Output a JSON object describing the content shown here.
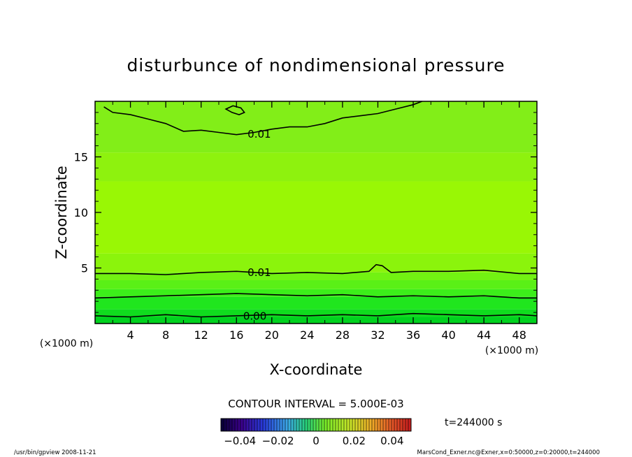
{
  "chart_data": {
    "type": "heatmap",
    "title": "disturbunce of nondimensional pressure",
    "xlabel": "X-coordinate",
    "ylabel": "Z-coordinate",
    "x_unit": "(×1000 m)",
    "y_unit": "(×1000 m)",
    "xlim": [
      0,
      50
    ],
    "ylim": [
      0,
      20
    ],
    "x_ticks": [
      4,
      8,
      12,
      16,
      20,
      24,
      28,
      32,
      36,
      40,
      44,
      48
    ],
    "y_ticks": [
      5,
      10,
      15
    ],
    "bands": [
      {
        "z_top": 0.6,
        "color": "#00d21e"
      },
      {
        "z_top": 1.3,
        "color": "#10dc1e"
      },
      {
        "z_top": 2.4,
        "color": "#20e61e"
      },
      {
        "z_top": 3.1,
        "color": "#3cee1a"
      },
      {
        "z_top": 3.9,
        "color": "#5af016"
      },
      {
        "z_top": 4.6,
        "color": "#72f212"
      },
      {
        "z_top": 6.3,
        "color": "#8bf40c"
      },
      {
        "z_top": 12.8,
        "color": "#99f705"
      },
      {
        "z_top": 15.4,
        "color": "#8ef20e"
      },
      {
        "z_top": 20.0,
        "color": "#82ee18"
      }
    ],
    "contours": [
      {
        "label": "0.00",
        "label_x": 16.5,
        "points": [
          [
            0,
            0.7
          ],
          [
            4,
            0.6
          ],
          [
            8,
            0.8
          ],
          [
            12,
            0.6
          ],
          [
            16,
            0.7
          ],
          [
            20,
            0.8
          ],
          [
            24,
            0.7
          ],
          [
            28,
            0.8
          ],
          [
            32,
            0.7
          ],
          [
            36,
            0.9
          ],
          [
            40,
            0.8
          ],
          [
            44,
            0.7
          ],
          [
            48,
            0.8
          ],
          [
            50,
            0.7
          ]
        ]
      },
      {
        "label": "",
        "label_x": null,
        "points": [
          [
            0,
            2.3
          ],
          [
            4,
            2.4
          ],
          [
            8,
            2.5
          ],
          [
            12,
            2.6
          ],
          [
            16,
            2.7
          ],
          [
            20,
            2.6
          ],
          [
            24,
            2.5
          ],
          [
            28,
            2.6
          ],
          [
            32,
            2.4
          ],
          [
            36,
            2.5
          ],
          [
            40,
            2.4
          ],
          [
            44,
            2.5
          ],
          [
            48,
            2.3
          ],
          [
            50,
            2.3
          ]
        ]
      },
      {
        "label": "0.01",
        "label_x": 17.0,
        "points": [
          [
            0,
            4.5
          ],
          [
            4,
            4.5
          ],
          [
            8,
            4.4
          ],
          [
            12,
            4.6
          ],
          [
            16,
            4.7
          ],
          [
            20,
            4.5
          ],
          [
            24,
            4.6
          ],
          [
            28,
            4.5
          ],
          [
            31,
            4.7
          ],
          [
            31.8,
            5.3
          ],
          [
            32.5,
            5.2
          ],
          [
            33.5,
            4.6
          ],
          [
            36,
            4.7
          ],
          [
            40,
            4.7
          ],
          [
            44,
            4.8
          ],
          [
            48,
            4.5
          ],
          [
            50,
            4.5
          ]
        ]
      },
      {
        "label": "0.01",
        "label_x": 17.0,
        "points": [
          [
            1,
            19.5
          ],
          [
            2,
            19.0
          ],
          [
            4,
            18.8
          ],
          [
            6,
            18.4
          ],
          [
            8,
            18.0
          ],
          [
            10,
            17.3
          ],
          [
            12,
            17.4
          ],
          [
            14,
            17.2
          ],
          [
            16,
            17.0
          ],
          [
            18,
            17.2
          ],
          [
            20,
            17.5
          ],
          [
            22,
            17.7
          ],
          [
            24,
            17.7
          ],
          [
            26,
            18.0
          ],
          [
            28,
            18.5
          ],
          [
            30,
            18.7
          ],
          [
            32,
            18.9
          ],
          [
            34,
            19.3
          ],
          [
            36,
            19.7
          ],
          [
            37,
            20.0
          ]
        ]
      }
    ],
    "closed_contours": [
      {
        "points": [
          [
            14.8,
            19.3
          ],
          [
            15.5,
            19.0
          ],
          [
            16.3,
            18.8
          ],
          [
            16.9,
            19.0
          ],
          [
            16.5,
            19.4
          ],
          [
            15.6,
            19.6
          ]
        ]
      }
    ],
    "colorbar": {
      "ticks": [
        "−0.04",
        "−0.02",
        "0",
        "0.02",
        "0.04"
      ],
      "range": [
        -0.05,
        0.05
      ]
    }
  },
  "labels": {
    "contour_interval": "CONTOUR INTERVAL = 5.000E-03",
    "time": "t=244000 s",
    "footer_left": "/usr/bin/gpview   2008-11-21",
    "footer_right": "MarsCond_Exner.nc@Exner,x=0:50000,z=0:20000,t=244000"
  }
}
